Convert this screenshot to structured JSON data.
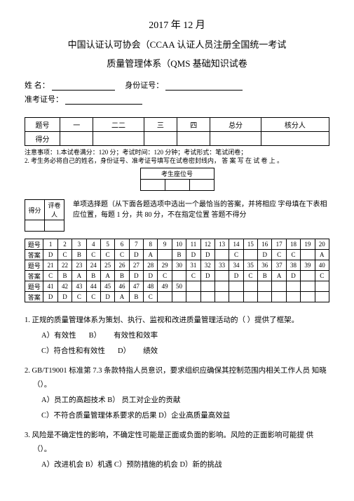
{
  "header": {
    "date": "2017 年 12 月",
    "org": "中国认证认可协会（CCAA 认证人员注册全国统一考试",
    "subject": "质量管理体系（QMS 基础知识试卷"
  },
  "info": {
    "name_label": "姓  名：",
    "id_label": "身份证号：",
    "ticket_label": "准考证号："
  },
  "score_table": {
    "cols": [
      "题号",
      "一",
      "二二",
      "三",
      "四",
      "总分",
      "核分人"
    ],
    "row2_label": "得分"
  },
  "notes": {
    "l1": "注意事项：1.本试卷满分：120 分；考试时间：120 分钟；考试形式：笔试闭卷；",
    "l2": "2. 考生务必将自己的姓名，身份证号、准考证号填写在试卷密封线内， 答 案 写 在 试 卷 上 。"
  },
  "seat": {
    "label": "考生座位号"
  },
  "section": {
    "small_table": [
      "得分",
      "评卷人"
    ],
    "text": "单项选择题（从下面各题选项中选出一个最恰当的答案，并将相应 字母填在下表相应位置，每题 1 分，共 80 分，不在指定位置 答题不得分"
  },
  "answers": {
    "label": "题号",
    "ans_label": "答案",
    "rows": [
      {
        "nums": [
          "1",
          "2",
          "3",
          "4",
          "5",
          "6",
          "7",
          "8",
          "9",
          "10",
          "11",
          "12",
          "13",
          "14",
          "15",
          "16",
          "17",
          "18",
          "19",
          "20"
        ],
        "vals": [
          "D",
          "C",
          "B",
          "C",
          "C",
          "C",
          "D",
          "A",
          "",
          "B",
          "D",
          "D",
          "",
          "C",
          "",
          "D",
          "C",
          "C",
          "",
          "A"
        ]
      },
      {
        "nums": [
          "21",
          "22",
          "23",
          "24",
          "25",
          "26",
          "27",
          "28",
          "29",
          "30",
          "31",
          "32",
          "33",
          "34",
          "35",
          "36",
          "37",
          "38",
          "39",
          "40"
        ],
        "vals": [
          "C",
          "B",
          "A",
          "B",
          "A",
          "B",
          "D",
          "D",
          "C",
          "",
          "C",
          "D",
          "",
          "D",
          "C",
          "B",
          "A",
          "D",
          "",
          "C"
        ]
      },
      {
        "nums": [
          "41",
          "42",
          "43",
          "44",
          "45",
          "46",
          "47",
          "48",
          "49",
          "50",
          "",
          "",
          "",
          "",
          "",
          "",
          "",
          "",
          "",
          ""
        ],
        "vals": [
          "D",
          "D",
          "C",
          "C",
          "D",
          "A",
          "B",
          "C",
          "",
          "",
          "",
          "",
          "",
          "",
          "",
          "",
          "",
          "",
          "",
          ""
        ]
      }
    ]
  },
  "questions": [
    {
      "stem": "1.  正规的质量管理体系为策划、执行、监视和改进质量管理活动的（     ）提供了框架。",
      "opts": [
        [
          "A）有效性",
          "B）",
          "有效性和效率"
        ],
        [
          "C）符合性和有效性",
          "D）",
          "绩效"
        ]
      ]
    },
    {
      "stem": "2.  GB/T19001 标准第 7.3 条款特指人员意识，要求组织应确保其控制范围内相关工作人员 知晓（）。",
      "opts": [
        [
          "A）员工的高超技术    B）    员工对企业的贡献"
        ],
        [
          "C）不符合质量管理体系要求的后果    D）企业高质量高效益"
        ]
      ]
    },
    {
      "stem": "3.      风险是不确定性的影响，不确定性可能是正面或负面的影响。风险的正面影响可能提 供（）。",
      "opts": [
        [
          "A）改进机会 B）机遇  C）预防措施的机会  D）新的挑战"
        ]
      ]
    }
  ]
}
